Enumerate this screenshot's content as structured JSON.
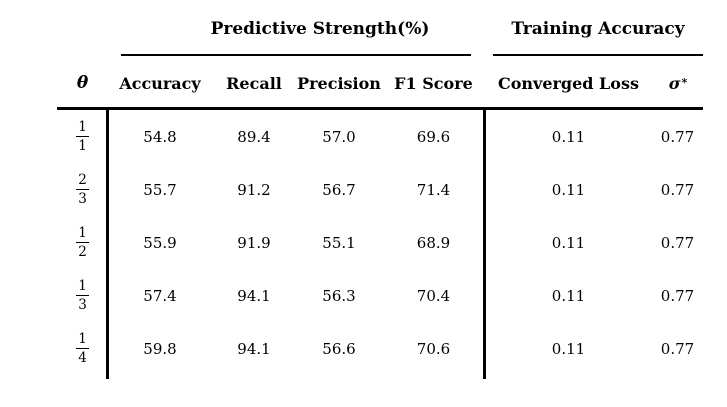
{
  "table": {
    "spanners": {
      "predictive": "Predictive Strength(%)",
      "training": "Training Accuracy"
    },
    "headers": {
      "theta": "θ",
      "accuracy": "Accuracy",
      "recall": "Recall",
      "precision": "Precision",
      "f1": "F1 Score",
      "converged_loss": "Converged Loss",
      "sigma": "σ",
      "sigma_sup": "*"
    },
    "rows": [
      {
        "theta_num": "1",
        "theta_den": "1",
        "accuracy": "54.8",
        "recall": "89.4",
        "precision": "57.0",
        "f1": "69.6",
        "converged_loss": "0.11",
        "sigma_star": "0.77"
      },
      {
        "theta_num": "2",
        "theta_den": "3",
        "accuracy": "55.7",
        "recall": "91.2",
        "precision": "56.7",
        "f1": "71.4",
        "converged_loss": "0.11",
        "sigma_star": "0.77"
      },
      {
        "theta_num": "1",
        "theta_den": "2",
        "accuracy": "55.9",
        "recall": "91.9",
        "precision": "55.1",
        "f1": "68.9",
        "converged_loss": "0.11",
        "sigma_star": "0.77"
      },
      {
        "theta_num": "1",
        "theta_den": "3",
        "accuracy": "57.4",
        "recall": "94.1",
        "precision": "56.3",
        "f1": "70.4",
        "converged_loss": "0.11",
        "sigma_star": "0.77"
      },
      {
        "theta_num": "1",
        "theta_den": "4",
        "accuracy": "59.8",
        "recall": "94.1",
        "precision": "56.6",
        "f1": "70.6",
        "converged_loss": "0.11",
        "sigma_star": "0.77"
      }
    ]
  },
  "chart_data": {
    "type": "table",
    "title": "",
    "column_groups": [
      {
        "label": "Predictive Strength(%)",
        "columns": [
          "Accuracy",
          "Recall",
          "Precision",
          "F1 Score"
        ]
      },
      {
        "label": "Training Accuracy",
        "columns": [
          "Converged Loss",
          "σ*"
        ]
      }
    ],
    "columns": [
      "θ",
      "Accuracy",
      "Recall",
      "Precision",
      "F1 Score",
      "Converged Loss",
      "σ*"
    ],
    "rows": [
      [
        "1/1",
        54.8,
        89.4,
        57.0,
        69.6,
        0.11,
        0.77
      ],
      [
        "2/3",
        55.7,
        91.2,
        56.7,
        71.4,
        0.11,
        0.77
      ],
      [
        "1/2",
        55.9,
        91.9,
        55.1,
        68.9,
        0.11,
        0.77
      ],
      [
        "1/3",
        57.4,
        94.1,
        56.3,
        70.4,
        0.11,
        0.77
      ],
      [
        "1/4",
        59.8,
        94.1,
        56.6,
        70.6,
        0.11,
        0.77
      ]
    ]
  }
}
